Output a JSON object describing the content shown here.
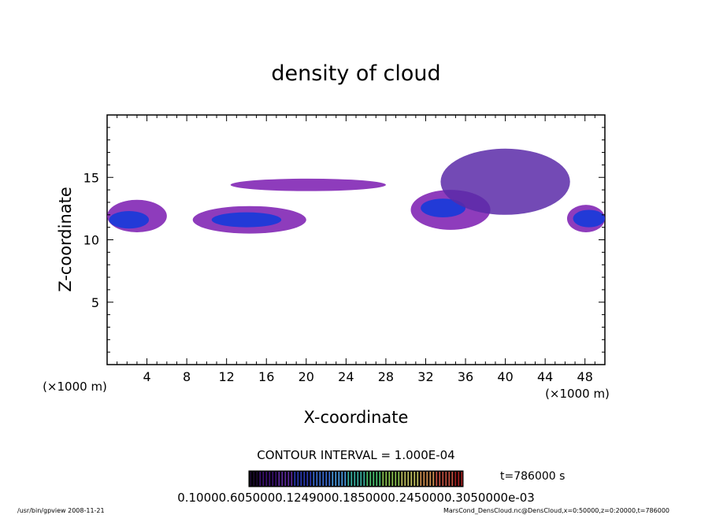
{
  "chart_data": {
    "type": "heatmap",
    "title": "density of cloud",
    "xlabel": "X-coordinate",
    "ylabel": "Z-coordinate",
    "x_units": "(×1000 m)",
    "y_units": "(×1000 m)",
    "xlim": [
      0,
      50
    ],
    "ylim": [
      0,
      20
    ],
    "x_ticks": [
      4,
      8,
      12,
      16,
      20,
      24,
      28,
      32,
      36,
      40,
      44,
      48
    ],
    "y_ticks": [
      5,
      10,
      15
    ],
    "contour_interval": "CONTOUR INTERVAL = 1.000E-04",
    "time_label": "t=786000 s",
    "colorbar_labels": "0.10000.6050000.1249000.1850000.2450000.3050000e-03",
    "colorbar_colors": [
      "#1a0a2e",
      "#3a1070",
      "#5a2a9a",
      "#2a3ab0",
      "#3a6ad0",
      "#4a9ae0",
      "#3ab0a0",
      "#4ac070",
      "#8ac050",
      "#c0c060",
      "#d09050",
      "#c05040",
      "#a02020"
    ],
    "footer_left": "/usr/bin/gpview   2008-11-21",
    "footer_right": "MarsCond_DensCloud.nc@DensCloud,x=0:50000,z=0:20000,t=786000",
    "clouds": [
      {
        "x": [
          0,
          6
        ],
        "z": [
          10.6,
          13.2
        ],
        "density": "low"
      },
      {
        "x": [
          0.2,
          4.2
        ],
        "z": [
          10.9,
          12.3
        ],
        "density": "high"
      },
      {
        "x": [
          8.6,
          20
        ],
        "z": [
          10.5,
          12.7
        ],
        "density": "low"
      },
      {
        "x": [
          10.5,
          17.5
        ],
        "z": [
          11.0,
          12.2
        ],
        "density": "high"
      },
      {
        "x": [
          12.4,
          28
        ],
        "z": [
          13.9,
          14.9
        ],
        "density": "low"
      },
      {
        "x": [
          30.5,
          38.5
        ],
        "z": [
          10.8,
          14.0
        ],
        "density": "low"
      },
      {
        "x": [
          31.5,
          36
        ],
        "z": [
          11.8,
          13.3
        ],
        "density": "high"
      },
      {
        "x": [
          33.5,
          46.5
        ],
        "z": [
          12.0,
          17.3
        ],
        "density": "medium"
      },
      {
        "x": [
          46.2,
          50
        ],
        "z": [
          10.6,
          12.8
        ],
        "density": "low"
      },
      {
        "x": [
          46.8,
          50
        ],
        "z": [
          11.0,
          12.4
        ],
        "density": "high"
      }
    ]
  }
}
